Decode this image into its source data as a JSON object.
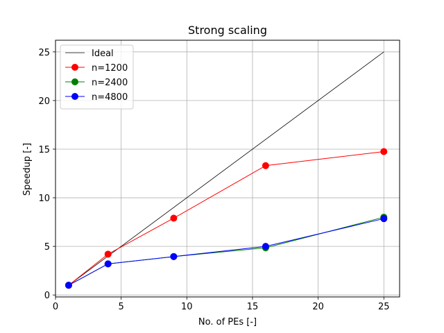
{
  "chart_data": {
    "type": "line",
    "title": "Strong scaling",
    "xlabel": "No. of PEs [-]",
    "ylabel": "Speedup [-]",
    "xlim": [
      0,
      26.2
    ],
    "ylim": [
      -0.2,
      26.2
    ],
    "xticks": [
      0,
      5,
      10,
      15,
      20,
      25
    ],
    "yticks": [
      0,
      5,
      10,
      15,
      20,
      25
    ],
    "grid": true,
    "legend_position": "top-left",
    "series": [
      {
        "name": "Ideal",
        "color": "#000000",
        "marker": false,
        "x": [
          1,
          25
        ],
        "y": [
          1,
          25
        ]
      },
      {
        "name": "n=1200",
        "color": "#ff0000",
        "marker": true,
        "x": [
          1,
          4,
          9,
          16,
          25
        ],
        "y": [
          1.0,
          4.2,
          7.9,
          13.3,
          14.75
        ]
      },
      {
        "name": "n=2400",
        "color": "#008000",
        "marker": true,
        "x": [
          1,
          4,
          9,
          16,
          25
        ],
        "y": [
          1.0,
          3.2,
          3.95,
          4.85,
          8.0
        ]
      },
      {
        "name": "n=4800",
        "color": "#0000ff",
        "marker": true,
        "x": [
          1,
          4,
          9,
          16,
          25
        ],
        "y": [
          1.0,
          3.2,
          3.95,
          5.0,
          7.85
        ]
      }
    ]
  }
}
